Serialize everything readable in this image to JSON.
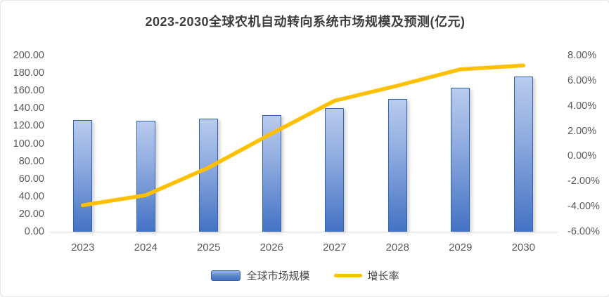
{
  "title": "2023-2030全球农机自动转向系统市场规模及预测(亿元)",
  "legend": {
    "bar_label": "全球市场规模",
    "line_label": "增长率"
  },
  "colors": {
    "bar_top": "#b9cbee",
    "bar_bottom": "#4472c4",
    "bar_border": "#3463ae",
    "line": "#ffc000",
    "axis_text": "#595959",
    "title_text": "#3d3d3d",
    "axis_line": "#d9d9d9",
    "background": "#ffffff"
  },
  "chart_data": {
    "type": "bar",
    "subtype": "bar+line combo, dual axis",
    "title": "2023-2030全球农机自动转向系统市场规模及预测(亿元)",
    "categories": [
      "2023",
      "2024",
      "2025",
      "2026",
      "2027",
      "2028",
      "2029",
      "2030"
    ],
    "series": [
      {
        "name": "全球市场规模",
        "type": "bar",
        "axis": "left",
        "unit": "亿元",
        "values": [
          127.0,
          126.2,
          128.0,
          132.3,
          140.6,
          151.0,
          163.5,
          175.9
        ]
      },
      {
        "name": "增长率",
        "type": "line",
        "axis": "right",
        "unit": "%",
        "values": [
          -3.9,
          -3.1,
          -0.9,
          1.8,
          4.4,
          5.6,
          6.9,
          7.2
        ]
      }
    ],
    "left_axis": {
      "min": 0,
      "max": 200,
      "step": 20,
      "tick_labels": [
        "200.00",
        "180.00",
        "160.00",
        "140.00",
        "120.00",
        "100.00",
        "80.00",
        "60.00",
        "40.00",
        "20.00",
        "0.00"
      ]
    },
    "right_axis": {
      "min": -6,
      "max": 8,
      "step": 2,
      "tick_labels": [
        "8.00%",
        "6.00%",
        "4.00%",
        "2.00%",
        "0.00%",
        "-2.00%",
        "-4.00%",
        "-6.00%"
      ]
    },
    "grid": false,
    "legend_position": "bottom"
  }
}
